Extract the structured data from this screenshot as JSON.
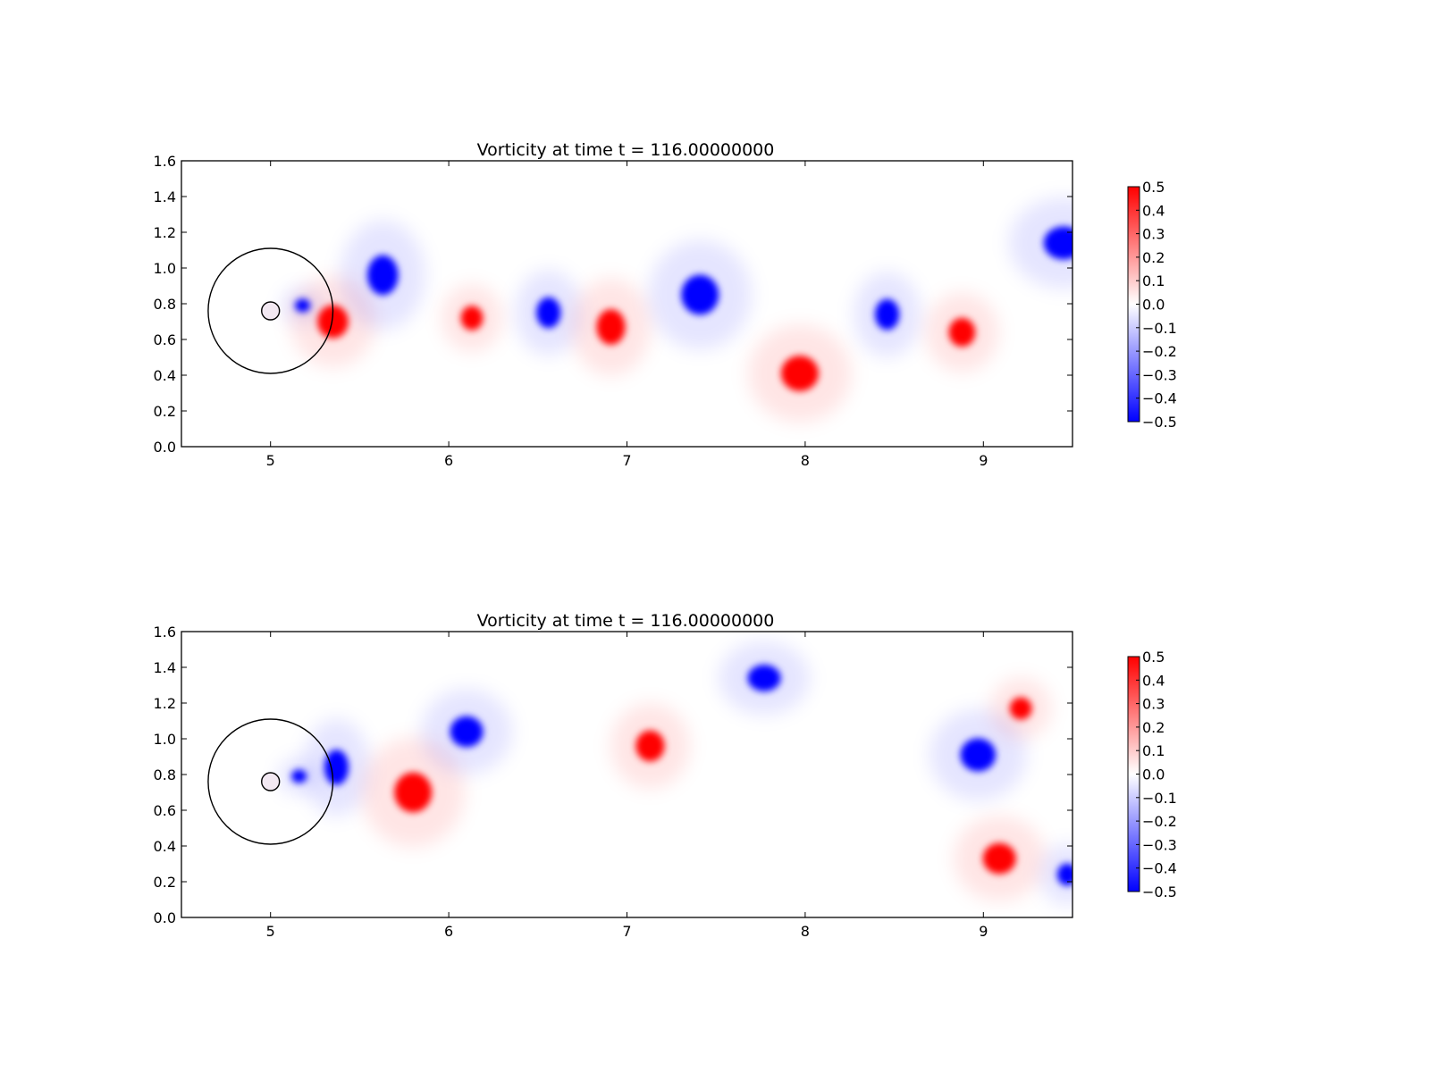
{
  "chart_data": [
    {
      "type": "heatmap",
      "title": "Vorticity at time t =   116.00000000",
      "xlim": [
        4.5,
        9.5
      ],
      "ylim": [
        0.0,
        1.6
      ],
      "xticks": [
        "5",
        "6",
        "7",
        "8",
        "9"
      ],
      "yticks": [
        "0.0",
        "0.2",
        "0.4",
        "0.6",
        "0.8",
        "1.0",
        "1.2",
        "1.4",
        "1.6"
      ],
      "colorbar": {
        "range": [
          -0.5,
          0.5
        ],
        "ticks": [
          "0.5",
          "0.4",
          "0.3",
          "0.2",
          "0.1",
          "0.0",
          "−0.1",
          "−0.2",
          "−0.3",
          "−0.4",
          "−0.5"
        ],
        "colors": [
          "#0000ff",
          "#ffffff",
          "#ff0000"
        ]
      },
      "cylinder": {
        "x": 5.0,
        "y": 0.76,
        "radius": 0.05
      },
      "ring": {
        "x": 5.0,
        "y": 0.76,
        "radius": 0.35
      },
      "vortices": [
        {
          "x": 5.18,
          "y": 0.79,
          "rx": 0.07,
          "ry": 0.06,
          "w": -0.5
        },
        {
          "x": 5.35,
          "y": 0.7,
          "rx": 0.14,
          "ry": 0.15,
          "w": 0.5
        },
        {
          "x": 5.63,
          "y": 0.96,
          "rx": 0.14,
          "ry": 0.18,
          "w": -0.5
        },
        {
          "x": 6.13,
          "y": 0.72,
          "rx": 0.1,
          "ry": 0.11,
          "w": 0.5
        },
        {
          "x": 6.56,
          "y": 0.75,
          "rx": 0.11,
          "ry": 0.14,
          "w": -0.5
        },
        {
          "x": 6.91,
          "y": 0.67,
          "rx": 0.13,
          "ry": 0.16,
          "w": 0.5
        },
        {
          "x": 7.41,
          "y": 0.85,
          "rx": 0.17,
          "ry": 0.18,
          "w": -0.5
        },
        {
          "x": 7.97,
          "y": 0.41,
          "rx": 0.17,
          "ry": 0.16,
          "w": 0.5
        },
        {
          "x": 8.46,
          "y": 0.74,
          "rx": 0.11,
          "ry": 0.14,
          "w": -0.5
        },
        {
          "x": 8.88,
          "y": 0.64,
          "rx": 0.12,
          "ry": 0.13,
          "w": 0.5
        },
        {
          "x": 9.45,
          "y": 1.14,
          "rx": 0.18,
          "ry": 0.15,
          "w": -0.5
        }
      ]
    },
    {
      "type": "heatmap",
      "title": "Vorticity at time t =   116.00000000",
      "xlim": [
        4.5,
        9.5
      ],
      "ylim": [
        0.0,
        1.6
      ],
      "xticks": [
        "5",
        "6",
        "7",
        "8",
        "9"
      ],
      "yticks": [
        "0.0",
        "0.2",
        "0.4",
        "0.6",
        "0.8",
        "1.0",
        "1.2",
        "1.4",
        "1.6"
      ],
      "colorbar": {
        "range": [
          -0.5,
          0.5
        ],
        "ticks": [
          "0.5",
          "0.4",
          "0.3",
          "0.2",
          "0.1",
          "0.0",
          "−0.1",
          "−0.2",
          "−0.3",
          "−0.4",
          "−0.5"
        ],
        "colors": [
          "#0000ff",
          "#ffffff",
          "#ff0000"
        ]
      },
      "cylinder": {
        "x": 5.0,
        "y": 0.76,
        "radius": 0.05
      },
      "ring": {
        "x": 5.0,
        "y": 0.76,
        "radius": 0.35
      },
      "vortices": [
        {
          "x": 5.16,
          "y": 0.79,
          "rx": 0.07,
          "ry": 0.06,
          "w": -0.5
        },
        {
          "x": 5.37,
          "y": 0.84,
          "rx": 0.11,
          "ry": 0.16,
          "w": -0.5
        },
        {
          "x": 5.8,
          "y": 0.7,
          "rx": 0.17,
          "ry": 0.18,
          "w": 0.5
        },
        {
          "x": 6.1,
          "y": 1.04,
          "rx": 0.15,
          "ry": 0.14,
          "w": -0.5
        },
        {
          "x": 7.13,
          "y": 0.96,
          "rx": 0.13,
          "ry": 0.14,
          "w": 0.5
        },
        {
          "x": 7.77,
          "y": 1.34,
          "rx": 0.15,
          "ry": 0.12,
          "w": -0.5
        },
        {
          "x": 8.97,
          "y": 0.91,
          "rx": 0.16,
          "ry": 0.15,
          "w": -0.5
        },
        {
          "x": 9.21,
          "y": 1.17,
          "rx": 0.1,
          "ry": 0.1,
          "w": 0.5
        },
        {
          "x": 9.09,
          "y": 0.33,
          "rx": 0.15,
          "ry": 0.14,
          "w": 0.5
        },
        {
          "x": 9.47,
          "y": 0.24,
          "rx": 0.09,
          "ry": 0.1,
          "w": -0.5
        }
      ]
    }
  ]
}
